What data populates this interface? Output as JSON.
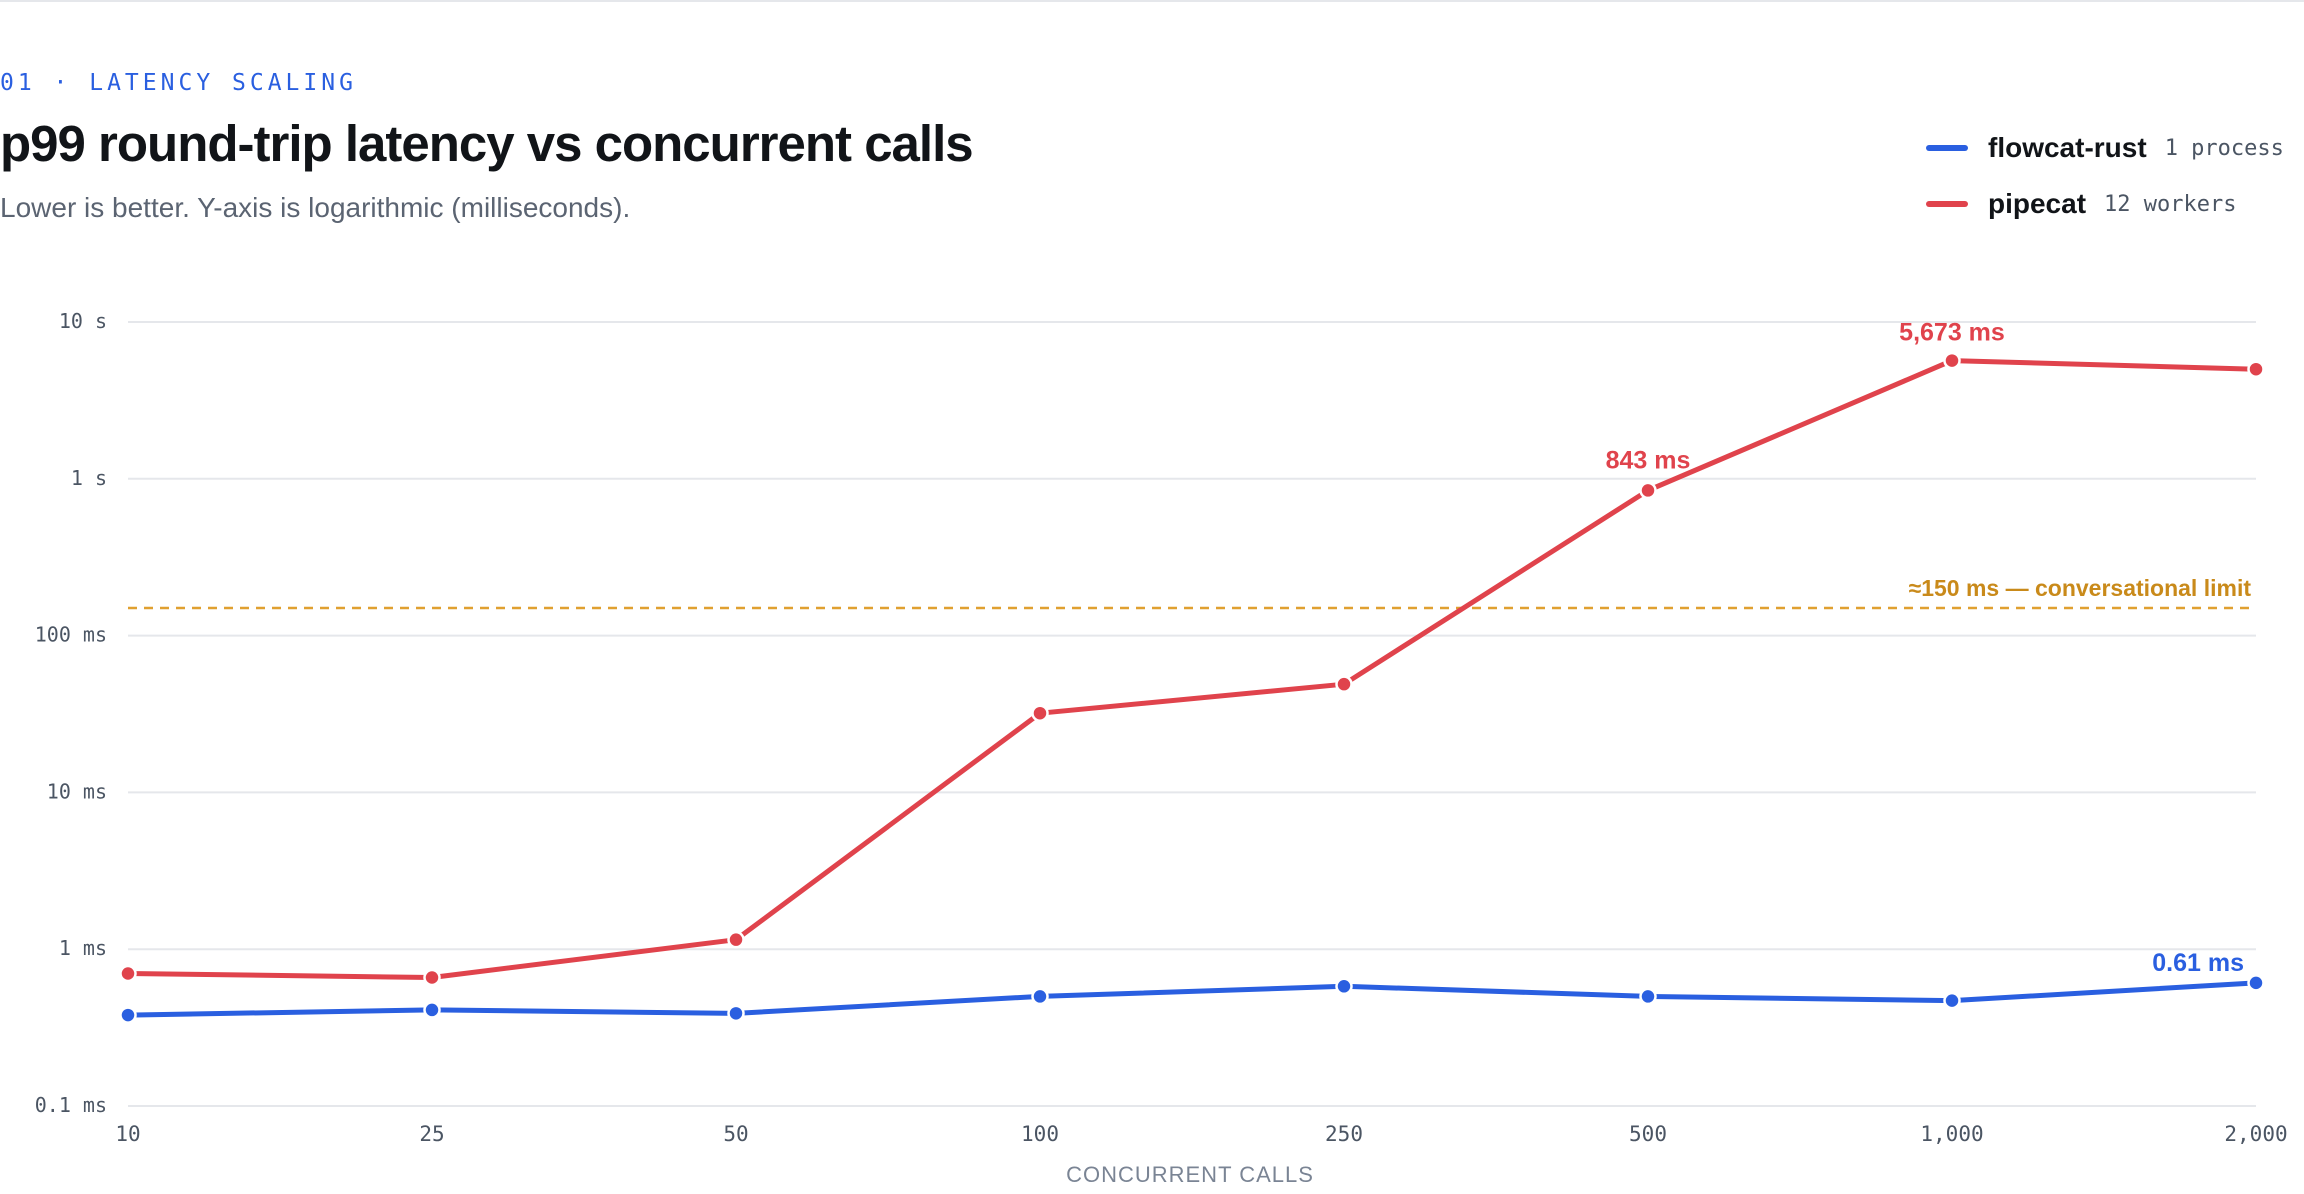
{
  "header": {
    "eyebrow": "01 · LATENCY SCALING",
    "title": "p99 round-trip latency vs concurrent calls",
    "subtitle": "Lower is better. Y-axis is logarithmic (milliseconds)."
  },
  "legend": [
    {
      "name": "flowcat-rust",
      "note": "1 process",
      "color": "#2a5fe0"
    },
    {
      "name": "pipecat",
      "note": "12 workers",
      "color": "#e0434c"
    }
  ],
  "chart_data": {
    "type": "line",
    "title": "p99 round-trip latency vs concurrent calls",
    "subtitle": "Lower is better. Y-axis is logarithmic (milliseconds).",
    "xlabel": "CONCURRENT CALLS",
    "ylabel": "",
    "y_scale": "log",
    "ylim": [
      0.1,
      10000
    ],
    "grid": true,
    "legend_position": "top-right",
    "categories": [
      "10",
      "25",
      "50",
      "100",
      "250",
      "500",
      "1,000",
      "2,000"
    ],
    "y_ticks": [
      {
        "value": 10000,
        "label": "10 s"
      },
      {
        "value": 1000,
        "label": "1 s"
      },
      {
        "value": 100,
        "label": "100 ms"
      },
      {
        "value": 10,
        "label": "10 ms"
      },
      {
        "value": 1,
        "label": "1 ms"
      },
      {
        "value": 0.1,
        "label": "0.1 ms"
      }
    ],
    "series": [
      {
        "name": "flowcat-rust",
        "color": "#2a5fe0",
        "values": [
          0.38,
          0.41,
          0.39,
          0.5,
          0.58,
          0.5,
          0.47,
          0.61
        ]
      },
      {
        "name": "pipecat",
        "color": "#e0434c",
        "values": [
          0.7,
          0.66,
          1.15,
          32,
          49,
          843,
          5673,
          5000
        ]
      }
    ],
    "annotations": [
      {
        "series": 1,
        "index": 5,
        "text": "843 ms"
      },
      {
        "series": 1,
        "index": 6,
        "text": "5,673 ms"
      },
      {
        "series": 0,
        "index": 7,
        "text": "0.61 ms"
      }
    ],
    "reference_line": {
      "value": 150,
      "label": "≈150 ms — conversational limit",
      "color": "#e0a030"
    },
    "colors": {
      "grid": "#e5e7eb",
      "tick_text": "#4b5563",
      "axis_title": "#7a8494"
    }
  }
}
